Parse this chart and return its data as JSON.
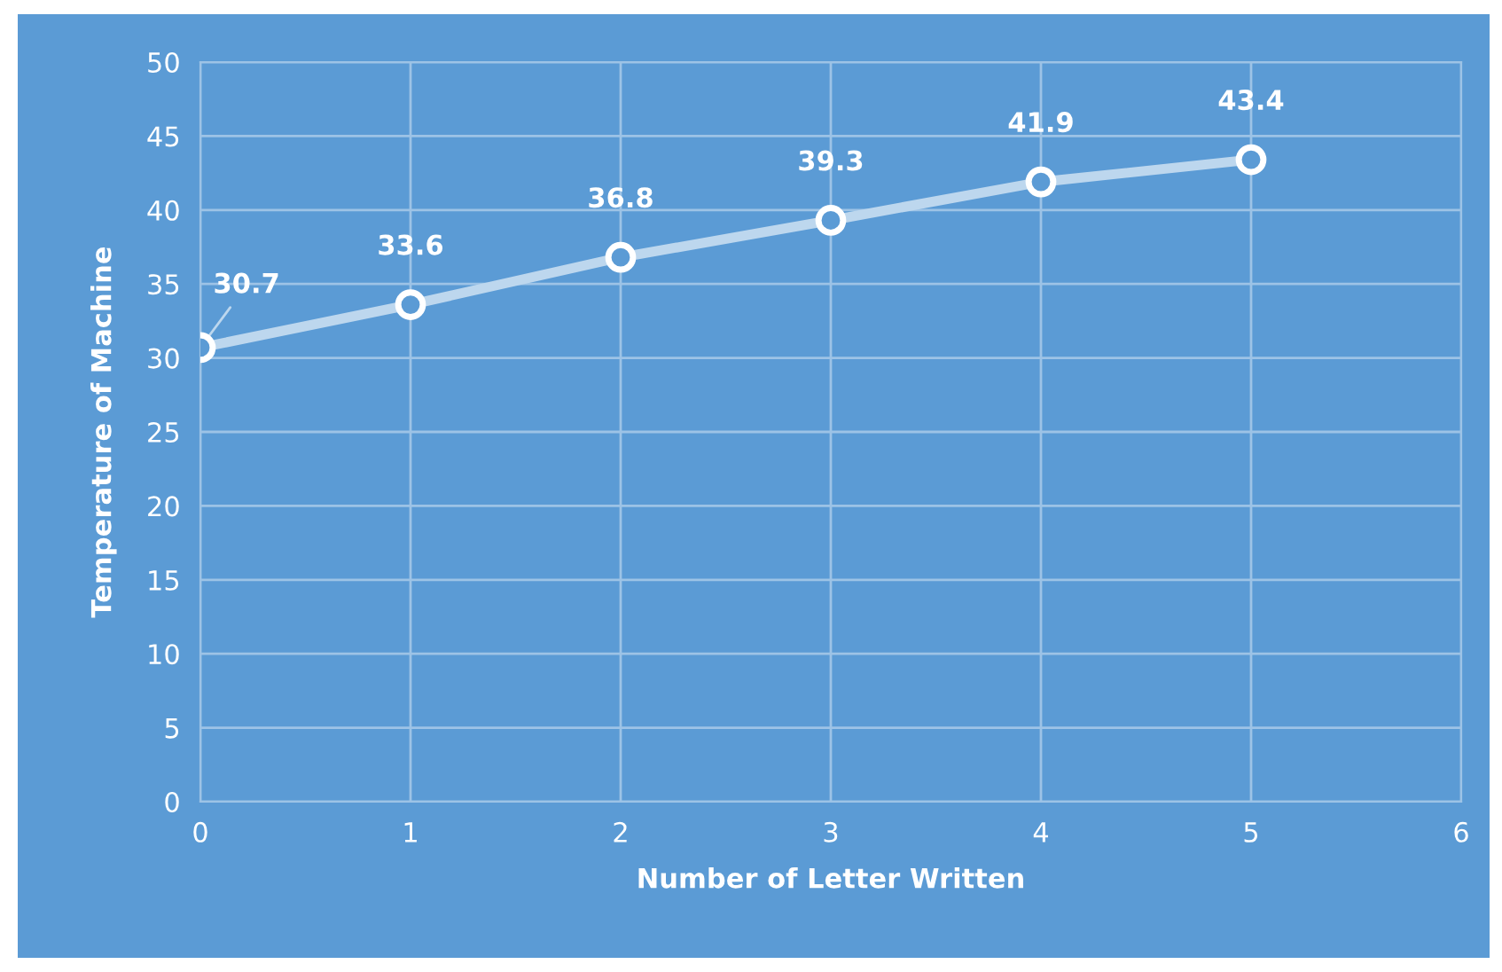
{
  "chart_data": {
    "type": "line",
    "xlabel": "Number of Letter Written",
    "ylabel": "Temperature of Machine",
    "x": [
      0,
      1,
      2,
      3,
      4,
      5
    ],
    "series": [
      {
        "color": "#bdd7ee",
        "values": [
          30.7,
          33.6,
          36.8,
          39.3,
          41.9,
          43.4
        ]
      }
    ],
    "xlim": [
      0,
      6
    ],
    "xticks": [
      0,
      1,
      2,
      3,
      4,
      5,
      6
    ],
    "ylim": [
      0,
      50
    ],
    "yticks": [
      0,
      5,
      10,
      15,
      20,
      25,
      30,
      35,
      40,
      45,
      50
    ],
    "grid": true,
    "marker": "circle",
    "line_style": "solid",
    "data_labels": true
  }
}
